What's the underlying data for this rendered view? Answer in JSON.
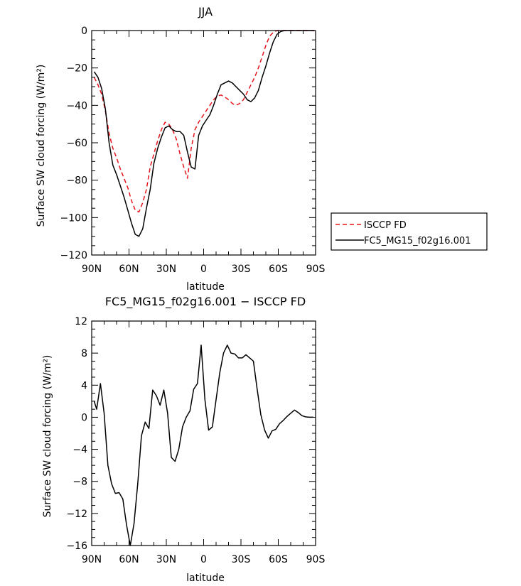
{
  "chart_data": [
    {
      "type": "line",
      "title": "JJA",
      "xlabel": "latitude",
      "ylabel": "Surface SW cloud forcing (W/m²)",
      "xlim": [
        90,
        -90
      ],
      "ylim": [
        -120,
        0
      ],
      "xticks": [
        90,
        60,
        30,
        0,
        -30,
        -60,
        -90
      ],
      "xticklabels": [
        "90N",
        "60N",
        "30N",
        "0",
        "30S",
        "60S",
        "90S"
      ],
      "yticks": [
        0,
        -20,
        -40,
        -60,
        -80,
        -100,
        -120
      ],
      "legend_position": "right-outside",
      "series": [
        {
          "name": "ISCCP FD",
          "color": "#e8141b",
          "style": "dashed",
          "x": [
            88,
            85,
            82,
            79,
            76,
            73,
            70,
            67,
            64,
            61,
            58,
            55,
            52,
            49,
            46,
            43,
            40,
            37,
            34,
            31,
            28,
            25,
            22,
            19,
            16,
            13,
            10,
            7,
            4,
            1,
            -2,
            -5,
            -8,
            -11,
            -14,
            -17,
            -20,
            -23,
            -26,
            -29,
            -32,
            -35,
            -38,
            -41,
            -44,
            -47,
            -50,
            -53,
            -56,
            -59,
            -62,
            -65,
            -68,
            -71,
            -74,
            -77,
            -80,
            -83,
            -86,
            -89
          ],
          "y": [
            -25,
            -29,
            -34,
            -43,
            -55,
            -63,
            -68,
            -74,
            -79,
            -84,
            -91,
            -96,
            -97,
            -92,
            -85,
            -73,
            -66,
            -59,
            -53,
            -49,
            -50,
            -53,
            -58,
            -66,
            -73,
            -79,
            -63,
            -53,
            -49,
            -46,
            -43,
            -40,
            -37,
            -35,
            -34.5,
            -35.5,
            -37,
            -39,
            -40,
            -39,
            -37,
            -33,
            -29,
            -25,
            -20,
            -14,
            -8,
            -3,
            -1,
            0,
            0,
            0,
            0,
            0,
            0,
            0,
            0,
            0,
            0,
            0
          ]
        },
        {
          "name": "FC5_MG15_f02g16.001",
          "color": "#000000",
          "style": "solid",
          "x": [
            88,
            85,
            82,
            79,
            76,
            73,
            70,
            67,
            64,
            61,
            58,
            55,
            52,
            49,
            46,
            43,
            40,
            37,
            34,
            31,
            28,
            25,
            22,
            19,
            16,
            13,
            10,
            7,
            4,
            1,
            -2,
            -5,
            -8,
            -11,
            -14,
            -17,
            -20,
            -23,
            -26,
            -29,
            -32,
            -35,
            -38,
            -41,
            -44,
            -47,
            -50,
            -53,
            -56,
            -59,
            -62,
            -65,
            -68,
            -71,
            -74,
            -77,
            -80,
            -83,
            -86,
            -89
          ],
          "y": [
            -22,
            -25,
            -31,
            -42,
            -60,
            -72,
            -77,
            -83,
            -89,
            -96,
            -103,
            -109,
            -110,
            -106,
            -95,
            -85,
            -71,
            -63,
            -57,
            -52,
            -51,
            -53,
            -54,
            -54,
            -56,
            -65,
            -73,
            -74,
            -56,
            -51,
            -48,
            -45,
            -40,
            -34,
            -29,
            -28,
            -27,
            -28,
            -30,
            -32,
            -34,
            -37,
            -38,
            -36,
            -32,
            -25,
            -19,
            -12,
            -6,
            -2,
            -0.5,
            0,
            0,
            0,
            0,
            0,
            0,
            0,
            0,
            0
          ]
        }
      ]
    },
    {
      "type": "line",
      "title": "FC5_MG15_f02g16.001 − ISCCP FD",
      "xlabel": "latitude",
      "ylabel": "Surface SW cloud forcing (W/m²)",
      "xlim": [
        90,
        -90
      ],
      "ylim": [
        -16,
        12
      ],
      "xticks": [
        90,
        60,
        30,
        0,
        -30,
        -60,
        -90
      ],
      "xticklabels": [
        "90N",
        "60N",
        "30N",
        "0",
        "30S",
        "60S",
        "90S"
      ],
      "yticks": [
        12,
        8,
        4,
        0,
        -4,
        -8,
        -12,
        -16
      ],
      "series": [
        {
          "color": "#000000",
          "style": "solid",
          "x": [
            88,
            86,
            83,
            80,
            77,
            74,
            71,
            68,
            65,
            62,
            59,
            56,
            53,
            50,
            47,
            44,
            41,
            38,
            35,
            32,
            29,
            26,
            23,
            20,
            17,
            14,
            11,
            8,
            5,
            2,
            -1,
            -4,
            -7,
            -10,
            -13,
            -16,
            -19,
            -22,
            -25,
            -28,
            -31,
            -34,
            -37,
            -40,
            -43,
            -46,
            -49,
            -52,
            -55,
            -58,
            -61,
            -64,
            -67,
            -70,
            -73,
            -76,
            -79,
            -82,
            -85,
            -88
          ],
          "y": [
            2,
            1,
            4.2,
            0.5,
            -6,
            -8.3,
            -9.5,
            -9.4,
            -10.2,
            -13.4,
            -16,
            -13.3,
            -8.3,
            -2.3,
            -0.6,
            -1.4,
            3.4,
            2.7,
            1.5,
            3.4,
            0.5,
            -5,
            -5.5,
            -4,
            -1.2,
            0,
            0.8,
            3.5,
            4.2,
            9,
            2.2,
            -1.6,
            -1.2,
            2.2,
            5.6,
            8,
            9,
            8,
            7.9,
            7.4,
            7.4,
            7.8,
            7.4,
            7,
            3.5,
            0.3,
            -1.6,
            -2.6,
            -1.7,
            -1.5,
            -0.8,
            -0.4,
            0.1,
            0.5,
            0.9,
            0.6,
            0.2,
            0.05,
            0,
            0
          ]
        }
      ]
    }
  ]
}
